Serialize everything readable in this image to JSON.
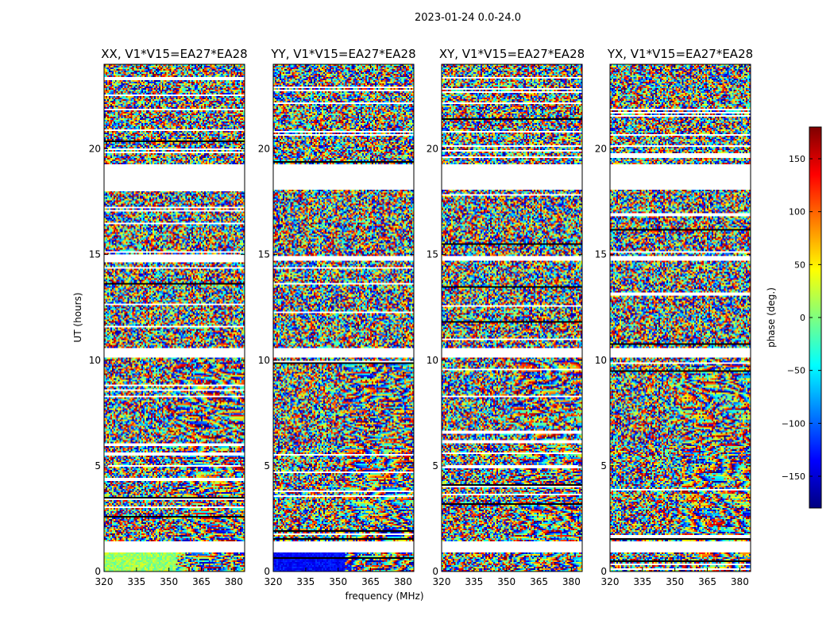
{
  "chart_data": {
    "type": "heatmap",
    "suptitle": "2023-01-24 0.0-24.0",
    "xlabel": "frequency (MHz)",
    "ylabel": "UT (hours)",
    "xlim": [
      320,
      385
    ],
    "ylim": [
      0,
      24
    ],
    "xticks": [
      320,
      335,
      350,
      365,
      380
    ],
    "yticks": [
      0,
      5,
      10,
      15,
      20
    ],
    "colormap": "jet",
    "colorbar": {
      "label": "phase (deg.)",
      "range": [
        -180,
        180
      ],
      "ticks": [
        -150,
        -100,
        -50,
        0,
        50,
        100,
        150
      ],
      "tick_labels": [
        "−150",
        "−100",
        "−50",
        "0",
        "50",
        "100",
        "150"
      ],
      "colors": [
        "#00007f",
        "#0000ff",
        "#007fff",
        "#00ffff",
        "#7fff7f",
        "#ffff00",
        "#ff7f00",
        "#ff0000",
        "#7f0000"
      ]
    },
    "gaps_hours": [
      [
        1.4,
        0.9
      ],
      [
        19.3,
        18.1
      ],
      [
        10.6,
        10.1
      ],
      [
        14.9,
        14.7
      ]
    ],
    "panels": [
      {
        "title": "XX, V1*V15=EA27*EA28",
        "pol": "XX"
      },
      {
        "title": "YY, V1*V15=EA27*EA28",
        "pol": "YY"
      },
      {
        "title": "XY, V1*V15=EA27*EA28",
        "pol": "XY"
      },
      {
        "title": "YX, V1*V15=EA27*EA28",
        "pol": "YX"
      }
    ]
  }
}
